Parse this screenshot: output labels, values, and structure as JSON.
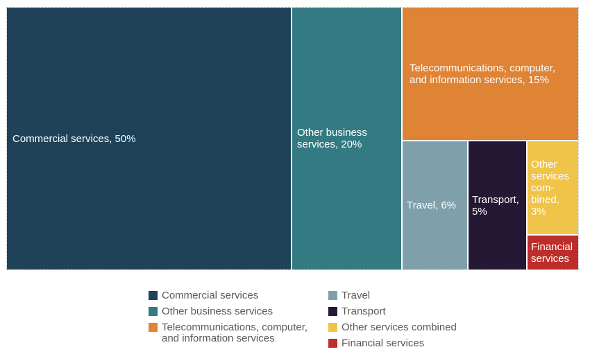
{
  "chart_data": {
    "type": "treemap",
    "legend_position": "bottom",
    "colors": {
      "label_text": "#FFFFFF",
      "legend_text": "#595959",
      "background": "#FFFFFF"
    },
    "items": [
      {
        "name": "Commercial services",
        "value_pct": 50,
        "color": "#1F4258",
        "label_lines": {
          "0": "Commercial services, 50%"
        }
      },
      {
        "name": "Other business services",
        "value_pct": 20,
        "color": "#337A82",
        "label_lines": {
          "0": "Other business",
          "1": "services, 20%"
        }
      },
      {
        "name": "Telecommunications, computer, and information services",
        "value_pct": 15,
        "color": "#DF8335",
        "label_lines": {
          "0": "Telecommunications, computer,",
          "1": "and information services, 15%"
        }
      },
      {
        "name": "Travel",
        "value_pct": 6,
        "color": "#7FA0AB",
        "label_lines": {
          "0": "Travel, 6%"
        }
      },
      {
        "name": "Transport",
        "value_pct": 5,
        "color": "#251834",
        "label_lines": {
          "0": "Transport,",
          "1": "5%"
        }
      },
      {
        "name": "Other services combined",
        "value_pct": 3,
        "color": "#F0C349",
        "label_lines": {
          "0": "Other",
          "1": "services",
          "2": "com-",
          "3": "bined,",
          "4": "3%"
        }
      },
      {
        "name": "Financial services",
        "value_pct": 1,
        "color": "#BE2D2A",
        "label_lines": {
          "0": "Financial",
          "1": "services"
        }
      }
    ],
    "legend": {
      "left_column": [
        {
          "swatch_color": "#1F4258",
          "lines": {
            "0": "Commercial services"
          }
        },
        {
          "swatch_color": "#337A82",
          "lines": {
            "0": "Other business services"
          }
        },
        {
          "swatch_color": "#DF8335",
          "lines": {
            "0": "Telecommunications, computer,",
            "1": "and information services"
          }
        }
      ],
      "right_column": [
        {
          "swatch_color": "#7FA0AB",
          "lines": {
            "0": "Travel"
          }
        },
        {
          "swatch_color": "#251834",
          "lines": {
            "0": "Transport"
          }
        },
        {
          "swatch_color": "#F0C349",
          "lines": {
            "0": "Other services combined"
          }
        },
        {
          "swatch_color": "#BE2D2A",
          "lines": {
            "0": "Financial services"
          }
        }
      ]
    }
  }
}
